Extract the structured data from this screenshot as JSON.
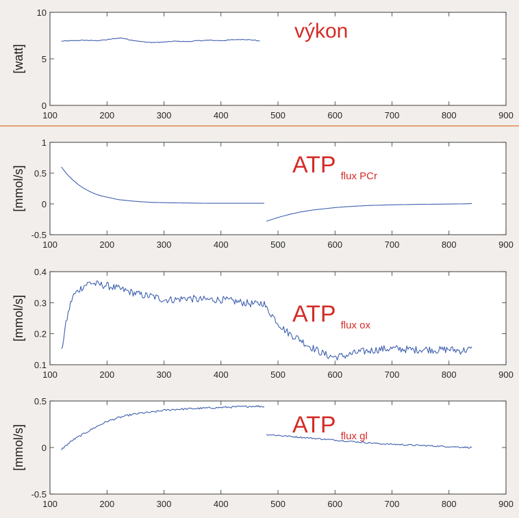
{
  "colors": {
    "line": "#3e5fae",
    "title": "#d42b27",
    "separator": "#e0742e",
    "axes": "#2b2b2b"
  },
  "chart_data": [
    {
      "type": "line",
      "title": "výkon",
      "title_sub": "",
      "ylabel": "[watt]",
      "xlim": [
        100,
        900
      ],
      "ylim": [
        0,
        10
      ],
      "xticks": [
        "100",
        "200",
        "300",
        "400",
        "500",
        "600",
        "700",
        "800",
        "900"
      ],
      "yticks": [
        "0",
        "5",
        "10"
      ],
      "series": [
        {
          "x": [
            120,
            140,
            160,
            180,
            200,
            210,
            225,
            240,
            260,
            280,
            300,
            320,
            340,
            360,
            380,
            400,
            420,
            440,
            460,
            468
          ],
          "y": [
            6.9,
            6.95,
            7.0,
            6.95,
            7.05,
            7.15,
            7.25,
            7.05,
            6.85,
            6.75,
            6.8,
            6.9,
            6.85,
            6.95,
            7.0,
            6.95,
            7.05,
            7.1,
            7.0,
            6.9
          ],
          "noise": 0.04
        }
      ]
    },
    {
      "type": "line",
      "title": "ATP",
      "title_sub": "flux PCr",
      "ylabel": "[mmol/s]",
      "xlim": [
        100,
        900
      ],
      "ylim": [
        -0.5,
        1
      ],
      "xticks": [
        "100",
        "200",
        "300",
        "400",
        "500",
        "600",
        "700",
        "800",
        "900"
      ],
      "yticks": [
        "-0.5",
        "0",
        "0.5",
        "1"
      ],
      "series": [
        {
          "x": [
            120,
            130,
            140,
            150,
            160,
            170,
            180,
            190,
            200,
            220,
            240,
            260,
            280,
            300,
            340,
            380,
            420,
            476
          ],
          "y": [
            0.6,
            0.48,
            0.39,
            0.31,
            0.25,
            0.2,
            0.16,
            0.13,
            0.11,
            0.07,
            0.05,
            0.035,
            0.025,
            0.02,
            0.015,
            0.01,
            0.01,
            0.01
          ],
          "noise": 0
        },
        {
          "x": [
            480,
            500,
            520,
            540,
            560,
            580,
            600,
            620,
            640,
            660,
            680,
            700,
            740,
            780,
            820,
            840
          ],
          "y": [
            -0.28,
            -0.22,
            -0.17,
            -0.13,
            -0.1,
            -0.08,
            -0.06,
            -0.045,
            -0.035,
            -0.025,
            -0.02,
            -0.015,
            -0.008,
            -0.004,
            0.0,
            0.005
          ],
          "noise": 0
        }
      ]
    },
    {
      "type": "line",
      "title": "ATP",
      "title_sub": "flux ox",
      "ylabel": "[mmol/s]",
      "xlim": [
        100,
        900
      ],
      "ylim": [
        0.1,
        0.4
      ],
      "xticks": [
        "100",
        "200",
        "300",
        "400",
        "500",
        "600",
        "700",
        "800",
        "900"
      ],
      "yticks": [
        "0.1",
        "0.2",
        "0.3",
        "0.4"
      ],
      "series": [
        {
          "x": [
            120,
            125,
            130,
            135,
            140,
            150,
            160,
            170,
            180,
            200,
            220,
            240,
            260,
            280,
            300,
            320,
            340,
            360,
            380,
            400,
            420,
            440,
            460,
            475,
            480,
            490,
            500,
            510,
            520,
            530,
            540,
            550,
            560,
            570,
            580,
            590,
            600,
            620,
            640,
            660,
            680,
            700,
            720,
            740,
            760,
            780,
            800,
            820,
            840
          ],
          "y": [
            0.14,
            0.2,
            0.25,
            0.29,
            0.32,
            0.34,
            0.355,
            0.365,
            0.36,
            0.355,
            0.345,
            0.335,
            0.325,
            0.32,
            0.31,
            0.31,
            0.315,
            0.31,
            0.31,
            0.31,
            0.305,
            0.3,
            0.295,
            0.3,
            0.28,
            0.26,
            0.235,
            0.215,
            0.2,
            0.19,
            0.18,
            0.165,
            0.155,
            0.145,
            0.135,
            0.128,
            0.125,
            0.13,
            0.14,
            0.145,
            0.15,
            0.152,
            0.15,
            0.148,
            0.15,
            0.147,
            0.15,
            0.145,
            0.15
          ],
          "noise": 0.012
        }
      ]
    },
    {
      "type": "line",
      "title": "ATP",
      "title_sub": "flux gl",
      "ylabel": "[mmol/s]",
      "xlim": [
        100,
        900
      ],
      "ylim": [
        -0.5,
        0.5
      ],
      "xticks": [
        "100",
        "200",
        "300",
        "400",
        "500",
        "600",
        "700",
        "800",
        "900"
      ],
      "yticks": [
        "-0.5",
        "0",
        "0.5"
      ],
      "series": [
        {
          "x": [
            120,
            140,
            160,
            180,
            200,
            220,
            240,
            260,
            280,
            300,
            320,
            340,
            360,
            380,
            400,
            420,
            440,
            460,
            476
          ],
          "y": [
            -0.02,
            0.08,
            0.15,
            0.22,
            0.28,
            0.32,
            0.35,
            0.37,
            0.38,
            0.4,
            0.41,
            0.415,
            0.42,
            0.425,
            0.43,
            0.435,
            0.44,
            0.445,
            0.44
          ],
          "noise": 0.01
        },
        {
          "x": [
            480,
            500,
            520,
            540,
            560,
            580,
            600,
            620,
            640,
            660,
            680,
            700,
            720,
            740,
            760,
            780,
            800,
            820,
            840
          ],
          "y": [
            0.14,
            0.13,
            0.12,
            0.11,
            0.1,
            0.09,
            0.08,
            0.07,
            0.06,
            0.05,
            0.04,
            0.035,
            0.03,
            0.025,
            0.02,
            0.015,
            0.01,
            0.005,
            0.0
          ],
          "noise": 0.008
        }
      ]
    }
  ]
}
